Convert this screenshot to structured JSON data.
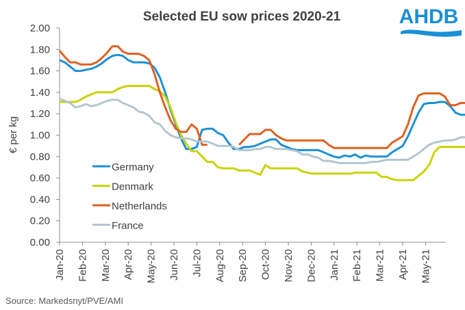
{
  "chart_data": {
    "type": "line",
    "title": "Selected EU sow prices 2020-21",
    "xlabel": "",
    "ylabel": "€ per kg",
    "ylim": [
      0,
      2
    ],
    "yticks": [
      "0.00",
      "0.20",
      "0.40",
      "0.60",
      "0.80",
      "1.00",
      "1.20",
      "1.40",
      "1.60",
      "1.80",
      "2.00"
    ],
    "xticks": [
      "Jan-20",
      "Feb-20",
      "Mar-20",
      "Apr-20",
      "May-20",
      "Jun-20",
      "Jul-20",
      "Aug-20",
      "Sep-20",
      "Oct-20",
      "Nov-20",
      "Dec-20",
      "Jan-21",
      "Feb-21",
      "Mar-21",
      "Apr-21",
      "May-21"
    ],
    "x_unit": "weeks since start of Jan-20",
    "grid": false,
    "legend_position": "center-left",
    "series": [
      {
        "name": "Germany",
        "color": "#1a8fd6",
        "values": [
          1.7,
          1.68,
          1.64,
          1.6,
          1.6,
          1.61,
          1.62,
          1.64,
          1.67,
          1.71,
          1.74,
          1.75,
          1.74,
          1.7,
          1.68,
          1.68,
          1.68,
          1.67,
          1.63,
          1.54,
          1.4,
          1.24,
          1.1,
          0.97,
          0.87,
          0.87,
          0.89,
          1.05,
          1.06,
          1.06,
          1.02,
          1.0,
          0.93,
          0.87,
          0.87,
          0.89,
          0.89,
          0.9,
          0.92,
          0.94,
          0.96,
          0.96,
          0.91,
          0.89,
          0.87,
          0.86,
          0.86,
          0.86,
          0.86,
          0.86,
          0.84,
          0.82,
          0.8,
          0.79,
          0.81,
          0.8,
          0.82,
          0.79,
          0.81,
          0.8,
          0.8,
          0.8,
          0.8,
          0.84,
          0.87,
          0.9,
          0.99,
          1.1,
          1.21,
          1.29,
          1.3,
          1.3,
          1.31,
          1.31,
          1.27,
          1.21,
          1.19,
          1.19,
          1.19,
          1.24,
          1.28
        ]
      },
      {
        "name": "Denmark",
        "color": "#c8d400",
        "values": [
          1.31,
          1.31,
          1.31,
          1.31,
          1.33,
          1.36,
          1.38,
          1.4,
          1.4,
          1.4,
          1.4,
          1.43,
          1.45,
          1.46,
          1.46,
          1.46,
          1.46,
          1.46,
          1.43,
          1.41,
          1.36,
          1.26,
          1.12,
          1.0,
          0.92,
          0.85,
          0.85,
          0.8,
          0.75,
          0.75,
          0.7,
          0.69,
          0.69,
          0.69,
          0.67,
          0.67,
          0.67,
          0.65,
          0.63,
          0.72,
          0.69,
          0.69,
          0.69,
          0.69,
          0.69,
          0.69,
          0.66,
          0.65,
          0.64,
          0.64,
          0.64,
          0.64,
          0.64,
          0.64,
          0.64,
          0.64,
          0.65,
          0.65,
          0.65,
          0.65,
          0.65,
          0.61,
          0.61,
          0.59,
          0.58,
          0.58,
          0.58,
          0.58,
          0.62,
          0.66,
          0.72,
          0.84,
          0.89,
          0.89,
          0.89,
          0.89,
          0.89,
          0.89,
          0.89,
          0.89,
          0.89,
          0.89,
          0.89
        ]
      },
      {
        "name": "Netherlands",
        "color": "#e0601f",
        "values": [
          1.79,
          1.73,
          1.68,
          1.68,
          1.66,
          1.66,
          1.66,
          1.68,
          1.72,
          1.77,
          1.83,
          1.83,
          1.78,
          1.76,
          1.76,
          1.76,
          1.74,
          1.7,
          1.57,
          1.4,
          1.26,
          1.14,
          1.06,
          1.03,
          1.03,
          1.1,
          1.06,
          0.91,
          0.91,
          null,
          null,
          null,
          null,
          null,
          0.91,
          0.96,
          1.01,
          1.01,
          1.01,
          1.05,
          1.05,
          1.0,
          0.97,
          0.95,
          0.95,
          0.95,
          0.95,
          0.95,
          0.95,
          0.95,
          0.95,
          0.91,
          0.88,
          0.88,
          0.88,
          0.88,
          0.88,
          0.88,
          0.88,
          0.88,
          0.88,
          0.88,
          0.88,
          0.93,
          0.96,
          0.99,
          1.1,
          1.26,
          1.37,
          1.39,
          1.39,
          1.39,
          1.39,
          1.36,
          1.28,
          1.28,
          1.3,
          1.3,
          1.32,
          1.39
        ]
      },
      {
        "name": "France",
        "color": "#b4c6cf",
        "values": [
          1.34,
          1.32,
          1.3,
          1.26,
          1.27,
          1.29,
          1.27,
          1.28,
          1.3,
          1.32,
          1.33,
          1.33,
          1.3,
          1.28,
          1.26,
          1.22,
          1.21,
          1.18,
          1.12,
          1.1,
          1.04,
          1.0,
          0.98,
          0.97,
          0.97,
          0.96,
          0.94,
          0.94,
          0.94,
          0.92,
          0.9,
          0.9,
          0.9,
          0.89,
          0.86,
          0.86,
          0.86,
          0.87,
          0.87,
          0.89,
          0.89,
          0.87,
          0.87,
          0.87,
          0.86,
          0.85,
          0.82,
          0.82,
          0.8,
          0.79,
          0.76,
          0.76,
          0.75,
          0.74,
          0.74,
          0.74,
          0.74,
          0.74,
          0.74,
          0.75,
          0.75,
          0.76,
          0.77,
          0.77,
          0.77,
          0.77,
          0.77,
          0.8,
          0.83,
          0.87,
          0.91,
          0.93,
          0.94,
          0.95,
          0.95,
          0.96,
          0.98,
          0.98,
          0.97,
          0.96,
          0.96,
          0.96
        ]
      }
    ],
    "source": "Source:  Markedsnyt/PVE/AMI"
  },
  "logo": {
    "text": "AHDB",
    "color": "#1a8fd6"
  }
}
